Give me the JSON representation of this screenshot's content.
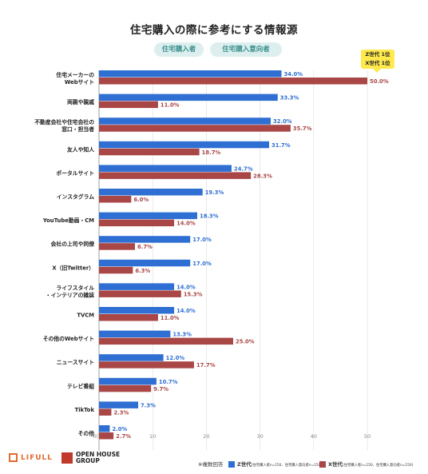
{
  "title": "住宅購入の際に参考にする情報源",
  "tags": [
    "住宅購入者",
    "住宅購入意向者"
  ],
  "callout": [
    "Z世代 1位",
    "X世代 1位"
  ],
  "footer": {
    "lifull": "LIFULL",
    "openhouse_line1": "OPEN HOUSE",
    "openhouse_line2": "GROUP",
    "note": "※複数回答",
    "z_label": "Z世代",
    "z_detail": "(住宅購入者n=150、住宅購入意向者n=150)",
    "x_label": "X世代",
    "x_detail": "(住宅購入者n=150、住宅購入意向者n=150)"
  },
  "colors": {
    "z": "#2f6fd3",
    "x": "#a94646",
    "z_text": "#2f6fd3",
    "x_text": "#a94646"
  },
  "chart_data": {
    "type": "bar",
    "orientation": "horizontal",
    "categories": [
      "住宅メーカーの\nWebサイト",
      "両親や親戚",
      "不動産会社や住宅会社の\n窓口・担当者",
      "友人や知人",
      "ポータルサイト",
      "インスタグラム",
      "YouTube動画・CM",
      "会社の上司や同僚",
      "X（旧Twitter）",
      "ライフスタイル\n・インテリアの雑誌",
      "TVCM",
      "その他のWebサイト",
      "ニュースサイト",
      "テレビ番組",
      "TikTok",
      "その他"
    ],
    "series": [
      {
        "name": "Z世代",
        "values": [
          34.0,
          33.3,
          32.0,
          31.7,
          24.7,
          19.3,
          18.3,
          17.0,
          17.0,
          14.0,
          14.0,
          13.3,
          12.0,
          10.7,
          7.3,
          2.0
        ],
        "labels": [
          "34.0%",
          "33.3%",
          "32.0%",
          "31.7%",
          "24.7%",
          "19.3%",
          "18.3%",
          "17.0%",
          "17.0%",
          "14.0%",
          "14.0%",
          "13.3%",
          "12.0%",
          "10.7%",
          "7.3%",
          "2.0%"
        ]
      },
      {
        "name": "X世代",
        "values": [
          50.0,
          11.0,
          35.7,
          18.7,
          28.3,
          6.0,
          14.0,
          6.7,
          6.3,
          15.3,
          11.0,
          25.0,
          17.7,
          9.7,
          2.3,
          2.7
        ],
        "labels": [
          "50.0%",
          "11.0%",
          "35.7%",
          "18.7%",
          "28.3%",
          "6.0%",
          "14.0%",
          "6.7%",
          "6.3%",
          "15.3%",
          "11.0%",
          "25.0%",
          "17.7%",
          "9.7%",
          "2.3%",
          "2.7%"
        ]
      }
    ],
    "xticks": [
      "0(%)",
      "10",
      "20",
      "30",
      "40",
      "50"
    ],
    "xlim": [
      0,
      50
    ],
    "grid": true
  }
}
